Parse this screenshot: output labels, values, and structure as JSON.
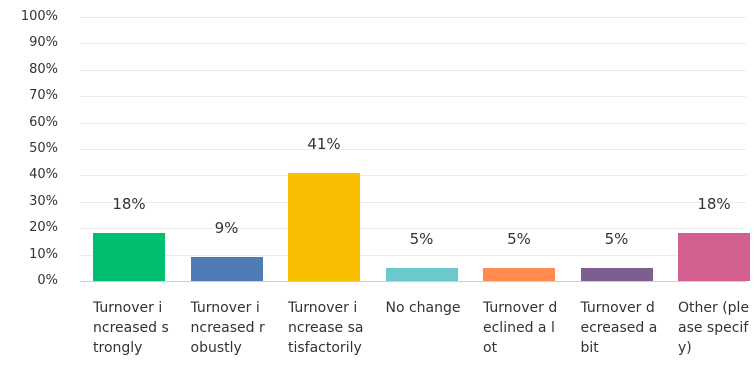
{
  "chart_data": {
    "type": "bar",
    "categories": [
      "Turnover increased strongly",
      "Turnover increased robustly",
      "Turnover increase satisfactorily",
      "No change",
      "Turnover declined a lot",
      "Turnover decreased a bit",
      "Other (please specify)"
    ],
    "values": [
      18,
      9,
      41,
      5,
      5,
      5,
      18
    ],
    "value_labels": [
      "18%",
      "9%",
      "41%",
      "5%",
      "5%",
      "5%",
      "18%"
    ],
    "colors": [
      "#00bf6f",
      "#507cb6",
      "#f9be00",
      "#6bc8cd",
      "#ff8b4f",
      "#7d5e90",
      "#d25f90"
    ],
    "ylim": [
      0,
      100
    ],
    "yticks": [
      "0%",
      "10%",
      "20%",
      "30%",
      "40%",
      "50%",
      "60%",
      "70%",
      "80%",
      "90%",
      "100%"
    ],
    "grid": true,
    "title": "",
    "xlabel": "",
    "ylabel": ""
  }
}
